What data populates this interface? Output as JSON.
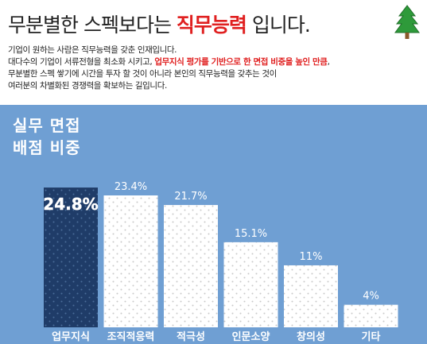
{
  "header": {
    "title_prefix": "무분별한 스펙보다는 ",
    "title_highlight": "직무능력",
    "title_suffix": " 입니다.",
    "line1": "기업이 원하는 사람은 직무능력을 갖춘 인재입니다.",
    "line2_prefix": "대다수의 기업이 서류전형을 최소화 시키고, ",
    "line2_highlight": "업무지식 평가를 기반으로 한 면접 비중을 높인 만큼",
    "line2_suffix": ",",
    "line3": "무분별한 스펙 쌓기에 시간을 투자 할 것이 아니라 본인의 직무능력을 갖추는 것이",
    "line4": "여러분의 차별화된 경쟁력을 확보하는 길입니다."
  },
  "colors": {
    "panel_bg": "#6f9fd3",
    "highlight_bar": "#1f3c68",
    "normal_bar": "#ffffff",
    "accent_red": "#e02020",
    "tree_green": "#2e9a3a"
  },
  "icons": [
    "tree-icon"
  ],
  "chart_data": {
    "type": "bar",
    "title_lines": [
      "실무 면접",
      "배점 비중"
    ],
    "categories": [
      "업무지식",
      "조직적응력",
      "적극성",
      "인문소양",
      "창의성",
      "기타"
    ],
    "values": [
      24.8,
      23.4,
      21.7,
      15.1,
      11,
      4
    ],
    "value_labels": [
      "24.8%",
      "23.4%",
      "21.7%",
      "15.1%",
      "11%",
      "4%"
    ],
    "highlight_index": 0,
    "ylim": [
      0,
      26.5
    ],
    "grid": false,
    "legend": false
  }
}
